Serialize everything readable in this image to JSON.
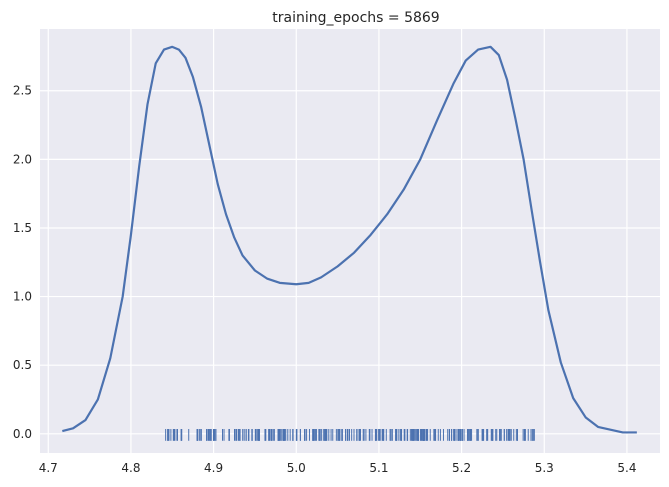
{
  "chart_data": {
    "type": "line",
    "subtype": "kde-with-rug",
    "title": "training_epochs = 5869",
    "xlabel": "",
    "ylabel": "",
    "xlim": [
      4.69,
      5.44
    ],
    "ylim": [
      -0.14,
      2.95
    ],
    "x_ticks": [
      4.7,
      4.8,
      4.9,
      5.0,
      5.1,
      5.2,
      5.3,
      5.4
    ],
    "y_ticks": [
      0.0,
      0.5,
      1.0,
      1.5,
      2.0,
      2.5
    ],
    "x_tick_labels": [
      "4.7",
      "4.8",
      "4.9",
      "5.0",
      "5.1",
      "5.2",
      "5.3",
      "5.4"
    ],
    "y_tick_labels": [
      "0.0",
      "0.5",
      "1.0",
      "1.5",
      "2.0",
      "2.5"
    ],
    "grid": true,
    "background": "#eaeaf2",
    "line_color": "#4c72b0",
    "series": [
      {
        "x": [
          4.717,
          4.73,
          4.745,
          4.76,
          4.775,
          4.79,
          4.8,
          4.81,
          4.82,
          4.83,
          4.84,
          4.85,
          4.858,
          4.866,
          4.875,
          4.885,
          4.895,
          4.905,
          4.915,
          4.925,
          4.935,
          4.95,
          4.965,
          4.98,
          5.0,
          5.015,
          5.03,
          5.05,
          5.07,
          5.09,
          5.11,
          5.13,
          5.15,
          5.17,
          5.19,
          5.205,
          5.22,
          5.235,
          5.245,
          5.255,
          5.265,
          5.275,
          5.285,
          5.295,
          5.305,
          5.32,
          5.335,
          5.35,
          5.365,
          5.38,
          5.395,
          5.412
        ],
        "y": [
          0.02,
          0.04,
          0.1,
          0.25,
          0.55,
          1.0,
          1.45,
          1.95,
          2.4,
          2.7,
          2.8,
          2.82,
          2.8,
          2.74,
          2.6,
          2.38,
          2.1,
          1.82,
          1.6,
          1.43,
          1.3,
          1.19,
          1.13,
          1.1,
          1.09,
          1.1,
          1.14,
          1.22,
          1.32,
          1.45,
          1.6,
          1.78,
          2.0,
          2.28,
          2.55,
          2.72,
          2.8,
          2.82,
          2.76,
          2.58,
          2.3,
          2.0,
          1.62,
          1.25,
          0.9,
          0.52,
          0.26,
          0.12,
          0.05,
          0.03,
          0.01,
          0.01
        ]
      }
    ],
    "rug": {
      "range": [
        4.842,
        5.288
      ],
      "gap": [
        5.005,
        5.01
      ],
      "count": 300,
      "height": 0.035
    }
  }
}
